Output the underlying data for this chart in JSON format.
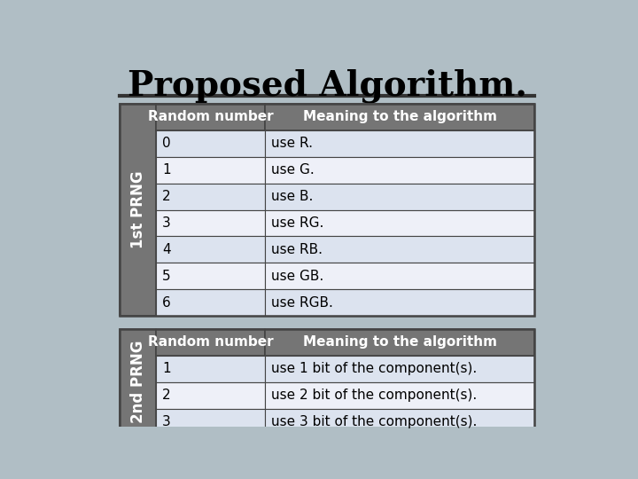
{
  "title": "Proposed Algorithm.",
  "background_color": "#b0bec5",
  "title_color": "#000000",
  "title_fontsize": 28,
  "header_bg": "#757575",
  "header_text_color": "#ffffff",
  "side_label_bg": "#757575",
  "side_label_text_color": "#ffffff",
  "row_bg_even": "#dce3ef",
  "row_bg_odd": "#eef0f8",
  "border_color": "#444444",
  "line_color": "#333333",
  "table1_side_label": "1st PRNG",
  "table1_headers": [
    "Random number",
    "Meaning to the algorithm"
  ],
  "table1_rows": [
    [
      "0",
      "use R."
    ],
    [
      "1",
      "use G."
    ],
    [
      "2",
      "use B."
    ],
    [
      "3",
      "use RG."
    ],
    [
      "4",
      "use RB."
    ],
    [
      "5",
      "use GB."
    ],
    [
      "6",
      "use RGB."
    ]
  ],
  "table2_side_label": "2nd PRNG",
  "table2_headers": [
    "Random number",
    "Meaning to the algorithm"
  ],
  "table2_rows": [
    [
      "1",
      "use 1 bit of the component(s)."
    ],
    [
      "2",
      "use 2 bit of the component(s)."
    ],
    [
      "3",
      "use 3 bit of the component(s)."
    ]
  ],
  "cell_fontsize": 11,
  "header_fontsize": 11,
  "side_fontsize": 12
}
